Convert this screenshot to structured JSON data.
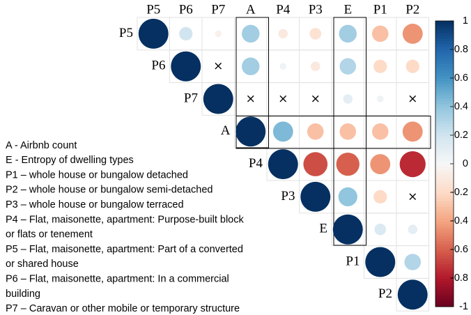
{
  "chart_data": {
    "type": "corrplot",
    "variables": [
      "P5",
      "P6",
      "P7",
      "A",
      "P4",
      "P3",
      "E",
      "P1",
      "P2"
    ],
    "values": [
      [
        1,
        0.2,
        -0.05,
        0.35,
        -0.1,
        -0.15,
        0.35,
        -0.3,
        -0.45
      ],
      [
        1,
        null,
        0.35,
        0.05,
        -0.1,
        0.3,
        -0.2,
        -0.2
      ],
      [
        1,
        null,
        null,
        null,
        0.1,
        0.05,
        null
      ],
      [
        1,
        0.45,
        -0.3,
        -0.3,
        -0.3,
        -0.45
      ],
      [
        1,
        -0.65,
        -0.6,
        -0.45,
        -0.75
      ],
      [
        1,
        0.4,
        -0.2,
        null
      ],
      [
        1,
        0.15,
        0.1
      ],
      [
        1,
        0.3
      ],
      [
        1
      ]
    ],
    "insignificant_symbol": "×",
    "clim": [
      -1,
      1
    ],
    "colorscale": [
      "#67001f",
      "#b2182b",
      "#d6604d",
      "#f4a582",
      "#fddbc7",
      "#f7f7f7",
      "#d1e5f0",
      "#92c5de",
      "#4393c3",
      "#2166ac",
      "#053061"
    ],
    "colorbar_ticks": [
      1,
      0.8,
      0.6,
      0.4,
      0.2,
      0,
      -0.2,
      -0.4,
      -0.6,
      -0.8,
      -1
    ],
    "legend_lines": [
      "A - Airbnb count",
      "E - Entropy of dwelling types",
      "P1 – whole house or bungalow detached",
      "P2 – whole house or bungalow semi-detached",
      "P3 – whole house or bungalow terraced",
      "P4 – Flat, maisonette, apartment: Purpose-built block",
      "or flats or tenement",
      "P5 – Flat, maisonette, apartment: Part of a converted",
      "or shared house",
      "P6 – Flat, maisonette, apartment: In a commercial",
      "building",
      "P7 – Caravan or other mobile or temporary structure"
    ]
  }
}
